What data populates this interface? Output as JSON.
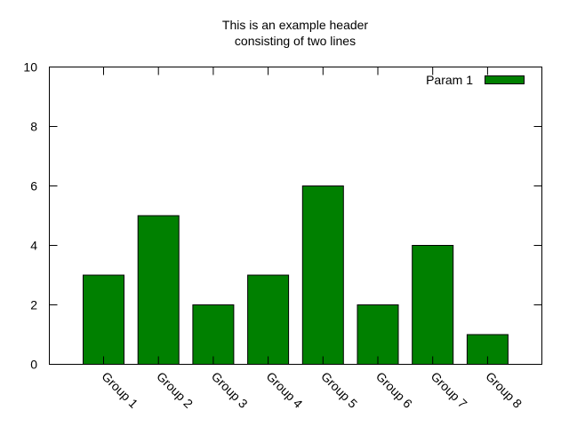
{
  "chart_data": {
    "type": "bar",
    "title_lines": [
      "This is an example header",
      "consisting of two lines"
    ],
    "xlabel": "",
    "ylabel": "",
    "categories": [
      "Group 1",
      "Group 2",
      "Group 3",
      "Group 4",
      "Group 5",
      "Group 6",
      "Group 7",
      "Group 8"
    ],
    "series": [
      {
        "name": "Param 1",
        "values": [
          3,
          5,
          2,
          3,
          6,
          2,
          4,
          1
        ],
        "color": "#008000"
      }
    ],
    "ylim": [
      0,
      10
    ],
    "yticks": [
      0,
      2,
      4,
      6,
      8,
      10
    ],
    "grid": false,
    "legend_position": "top-right"
  }
}
